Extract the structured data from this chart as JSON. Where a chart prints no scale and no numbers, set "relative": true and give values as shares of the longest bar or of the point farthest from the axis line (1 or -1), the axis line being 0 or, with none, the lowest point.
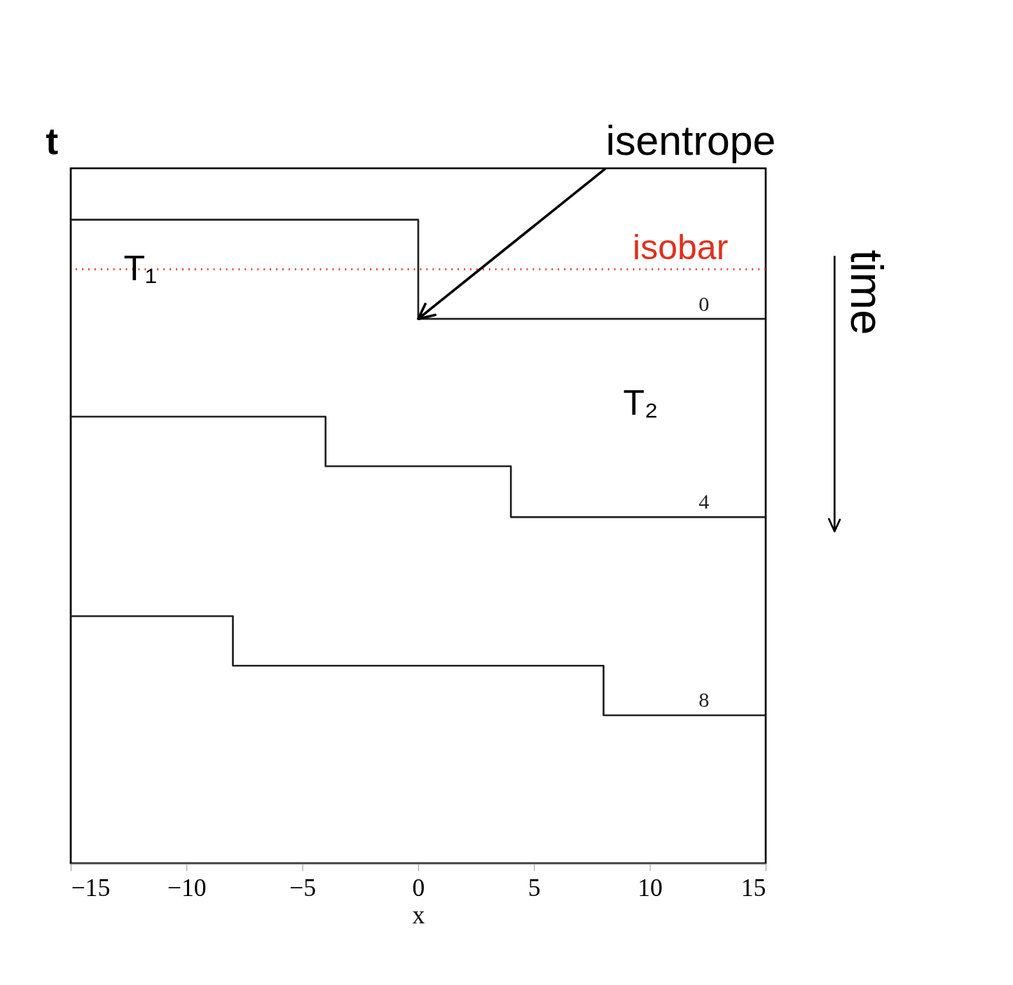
{
  "chart_data": {
    "type": "step",
    "relative": true,
    "xlabel": "x",
    "ylabel": "t",
    "xlim": [
      -15,
      15
    ],
    "xticks": [
      -15,
      -10,
      -5,
      0,
      5,
      10,
      15
    ],
    "grid": false,
    "line_style": "solid",
    "marker": "none",
    "series": [
      {
        "name": "0",
        "color": "#222222",
        "x": [
          -15,
          0,
          15
        ],
        "values": [
          1.0,
          0.846,
          0.846
        ]
      },
      {
        "name": "4",
        "color": "#222222",
        "x": [
          -15,
          -4,
          4,
          15
        ],
        "values": [
          0.694,
          0.617,
          0.538,
          0.538
        ]
      },
      {
        "name": "8",
        "color": "#222222",
        "x": [
          -15,
          -8,
          8,
          15
        ],
        "values": [
          0.384,
          0.307,
          0.23,
          0.23
        ]
      }
    ],
    "ref_lines": [
      {
        "axis": "y",
        "value": 0.923,
        "label": "isobar",
        "color": "#e0301e",
        "line_style": "dotted"
      }
    ],
    "annotations": [
      "isentrope",
      {
        "text": "T₁",
        "x": -12,
        "y": 0.923
      },
      "T₂",
      "time"
    ]
  }
}
